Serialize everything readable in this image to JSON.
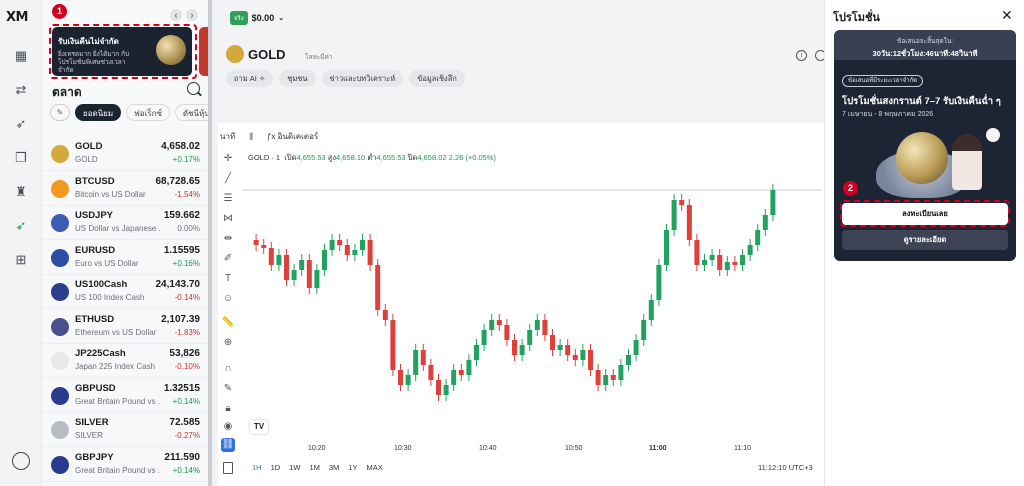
{
  "app": {
    "logo": "XM"
  },
  "rail": {
    "icons": [
      "chart-icon",
      "transfer-icon",
      "rocket-icon",
      "copy-icon",
      "trophy-icon",
      "rocket-trade-icon",
      "apps-icon"
    ]
  },
  "sidebar": {
    "promo_title": "รับเงินคืนไม่จำกัด",
    "promo_desc": "ยิ่งเทรดมาก ยิ่งได้มาก กับโปรโมชั่นพิเศษช่วงเวลาจำกัด",
    "market_title": "ตลาด",
    "filters": [
      "ยอดนิยม",
      "ฟอเร็กซ์",
      "ดัชนีหุ้น"
    ],
    "step1": "1",
    "watchlist": [
      {
        "symbol": "GOLD",
        "name": "GOLD",
        "price": "4,658.02",
        "change": "+0.17%",
        "dir": "pos",
        "color": "#d4a93c"
      },
      {
        "symbol": "BTCUSD",
        "name": "Bitcoin vs US Dollar",
        "price": "68,728.65",
        "change": "-1.54%",
        "dir": "neg",
        "color": "#f29a1f"
      },
      {
        "symbol": "USDJPY",
        "name": "US Dollar vs Japanese ...",
        "price": "159.662",
        "change": "0.00%",
        "dir": "neu",
        "color": "#3b5bb5"
      },
      {
        "symbol": "EURUSD",
        "name": "Euro vs US Dollar",
        "price": "1.15595",
        "change": "+0.16%",
        "dir": "pos",
        "color": "#2d4fa3"
      },
      {
        "symbol": "US100Cash",
        "name": "US 100 Index Cash",
        "price": "24,143.70",
        "change": "-0.14%",
        "dir": "neg",
        "color": "#2b3f8c"
      },
      {
        "symbol": "ETHUSD",
        "name": "Ethereum vs US Dollar",
        "price": "2,107.39",
        "change": "-1.83%",
        "dir": "neg",
        "color": "#4a4f8f"
      },
      {
        "symbol": "JP225Cash",
        "name": "Japan 225 Index Cash",
        "price": "53,826",
        "change": "-0.10%",
        "dir": "neg",
        "color": "#e8e8e8"
      },
      {
        "symbol": "GBPUSD",
        "name": "Great Britain Pound vs ...",
        "price": "1.32515",
        "change": "+0.14%",
        "dir": "pos",
        "color": "#2a3b8f"
      },
      {
        "symbol": "SILVER",
        "name": "SILVER",
        "price": "72.585",
        "change": "-0.27%",
        "dir": "neg",
        "color": "#b8bcc2"
      },
      {
        "symbol": "GBPJPY",
        "name": "Great Britain Pound vs ...",
        "price": "211.590",
        "change": "+0.14%",
        "dir": "pos",
        "color": "#2a3b8f"
      }
    ]
  },
  "header": {
    "account_badge": "จริง",
    "balance": "$0.00",
    "instrument": "GOLD",
    "instrument_sub": "โลหะมีค่า",
    "tabs": [
      "ถาม AI ✧",
      "ชุมชน",
      "ข่าวและบทวิเคราะห์",
      "ข้อมูลเชิงลึก"
    ]
  },
  "chart": {
    "interval_label": "นาที",
    "indicators_label": "อินดิเคเตอร์",
    "ohlc_prefix": "GOLD · 1",
    "open_label": "เปิด",
    "open": "4,655.53",
    "high_label": "สูง",
    "high": "4,658.10",
    "low_label": "ต่ำ",
    "low": "4,655.53",
    "close_label": "ปิด",
    "close": "4,658.02",
    "change": "2.26 (+0.05%)",
    "times": [
      "10:20",
      "10:30",
      "10:40",
      "10:50",
      "11:00",
      "11:10"
    ],
    "timeframes": [
      "1H",
      "1D",
      "1W",
      "1M",
      "3M",
      "1Y",
      "MAX"
    ],
    "clock": "11:12:10 UTC+3",
    "tv_logo": "TV"
  },
  "drawer": {
    "title": "โปรโมชั่น",
    "expires_label": "ข้อเสนอจะสิ้นสุดใน:",
    "countdown": "30วัน:12ชั่วโมง:46นาที:48วินาที",
    "offer_pill": "ข้อเสนอที่มีระยะเวลาจำกัด",
    "card_title": "โปรโมชั่นสงกรานต์ 7–7 รับเงินคืนฉ่ำ ๆ",
    "card_date": "7 เมษายน - 8 พฤษภาคม 2026",
    "register_button": "ลงทะเบียนเลย",
    "details_button": "ดูรายละเอียด",
    "step2": "2"
  }
}
